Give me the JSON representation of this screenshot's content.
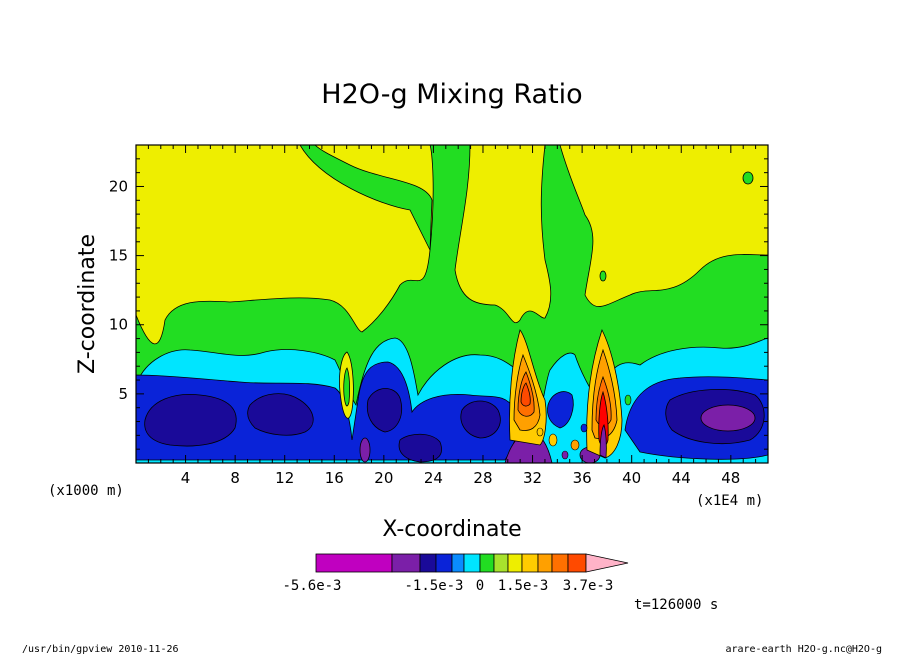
{
  "chart_data": {
    "type": "heatmap",
    "title": "H2O-g Mixing Ratio",
    "xlabel": "X-coordinate",
    "ylabel": "Z-coordinate",
    "x_unit_left": "(x1000 m)",
    "x_unit_right": "(x1E4 m)",
    "xlim": [
      0,
      51
    ],
    "ylim": [
      0,
      23
    ],
    "x_ticks": [
      "4",
      "8",
      "12",
      "16",
      "20",
      "24",
      "28",
      "32",
      "36",
      "40",
      "44",
      "48"
    ],
    "y_ticks": [
      "5",
      "10",
      "15",
      "20"
    ],
    "time_label": "t=126000 s",
    "colorbar": {
      "labels": [
        "-5.6e-3",
        "-1.5e-3",
        "0",
        "1.5e-3",
        "3.7e-3"
      ],
      "colors": [
        "#c000c0",
        "#7b1fa8",
        "#1a0a99",
        "#0a23d8",
        "#0a8cff",
        "#00e5ff",
        "#22dd22",
        "#a8e22d",
        "#eeee00",
        "#ffcc00",
        "#ffa000",
        "#ff7000",
        "#ff4a00",
        "#ff0000",
        "#ff7777",
        "#ffb3c8"
      ]
    },
    "field_levels": {
      "strong_negative": "#7b1fa8",
      "negative_deep": "#1a0a99",
      "negative_mid": "#0a23d8",
      "slightly_negative": "#00e5ff",
      "near_zero_low": "#22dd22",
      "background_upper": "#eeee00",
      "plume_low": "#ffcc00",
      "plume_mid": "#ffa000",
      "plume_high": "#ff7000",
      "plume_peak": "#ff0000"
    }
  },
  "footer": {
    "left": "/usr/bin/gpview   2010-11-26",
    "right": "arare-earth_H2O-g.nc@H2O-g"
  }
}
